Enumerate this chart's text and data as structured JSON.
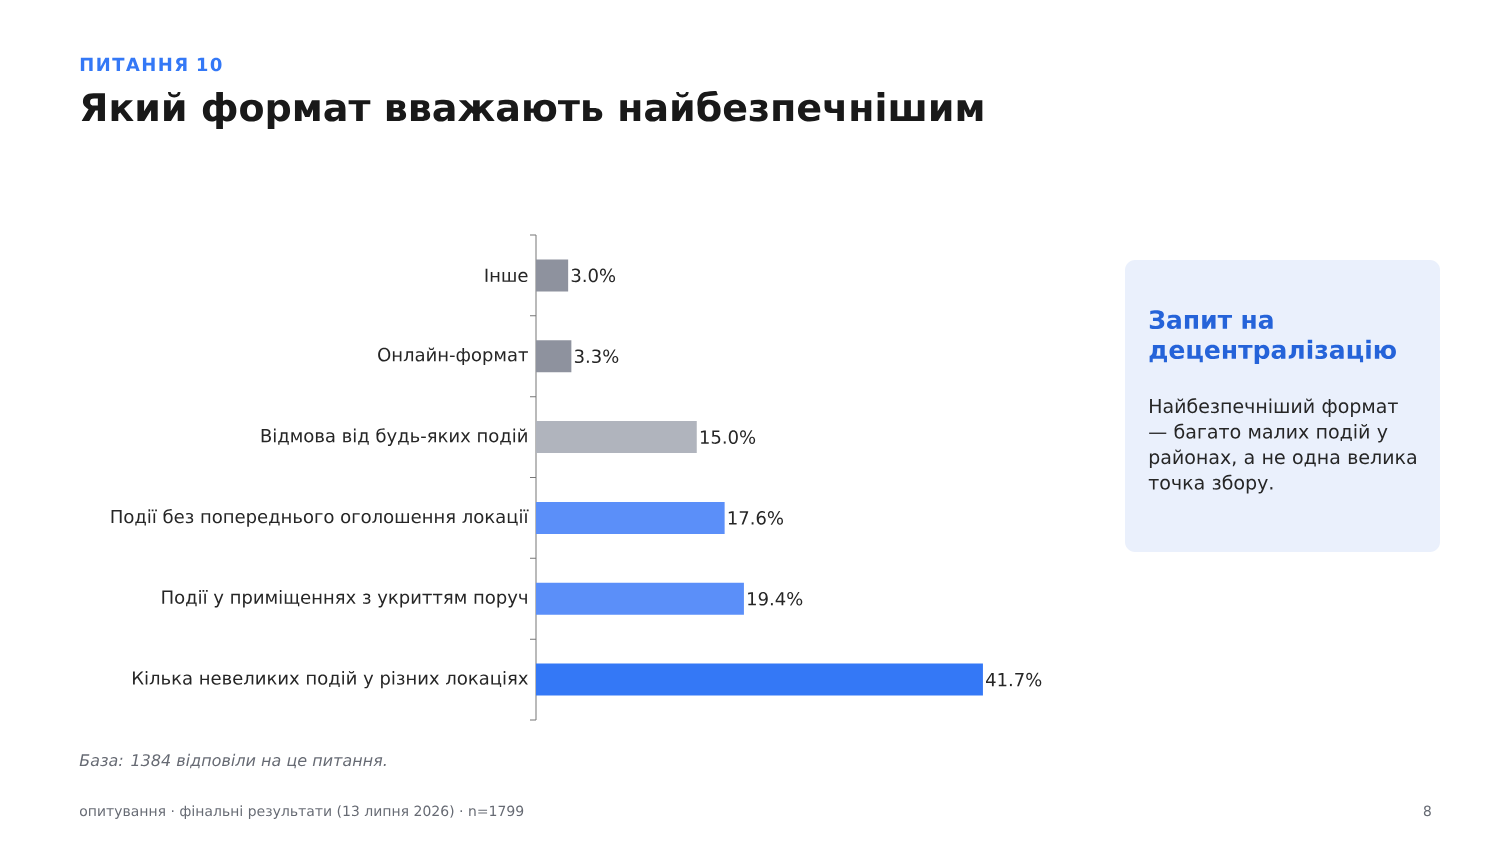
{
  "chart_data": {
    "type": "bar",
    "orientation": "horizontal",
    "subtitle": "ПИТАННЯ 10",
    "title": "Який формат вважають найбезпечнішим",
    "categories": [
      "Інше",
      "Онлайн-формат",
      "Відмова від будь-яких подій",
      "Події без попереднього оголошення локації",
      "Події у приміщеннях з укриттям поруч",
      "Кілька невеликих подій у різних локаціях"
    ],
    "values": [
      3.0,
      3.3,
      15.0,
      17.6,
      19.4,
      41.7
    ],
    "colors": [
      "#8e929e",
      "#8e929e",
      "#b0b4bd",
      "#5b8ff9",
      "#5b8ff9",
      "#3478f6"
    ],
    "value_labels": [
      "3.0%",
      "3.3%",
      "15.0%",
      "17.6%",
      "19.4%",
      "41.7%"
    ],
    "annotations": [
      "База: 1384 відповіли на це питання.",
      "Запит на децентралізацію",
      "Найбезпечніший формат — багато малих подій у районах, а не одна велика точка збору.",
      "опитування · фінальні результати (13 липня 2026) · n=1799",
      "8"
    ]
  }
}
